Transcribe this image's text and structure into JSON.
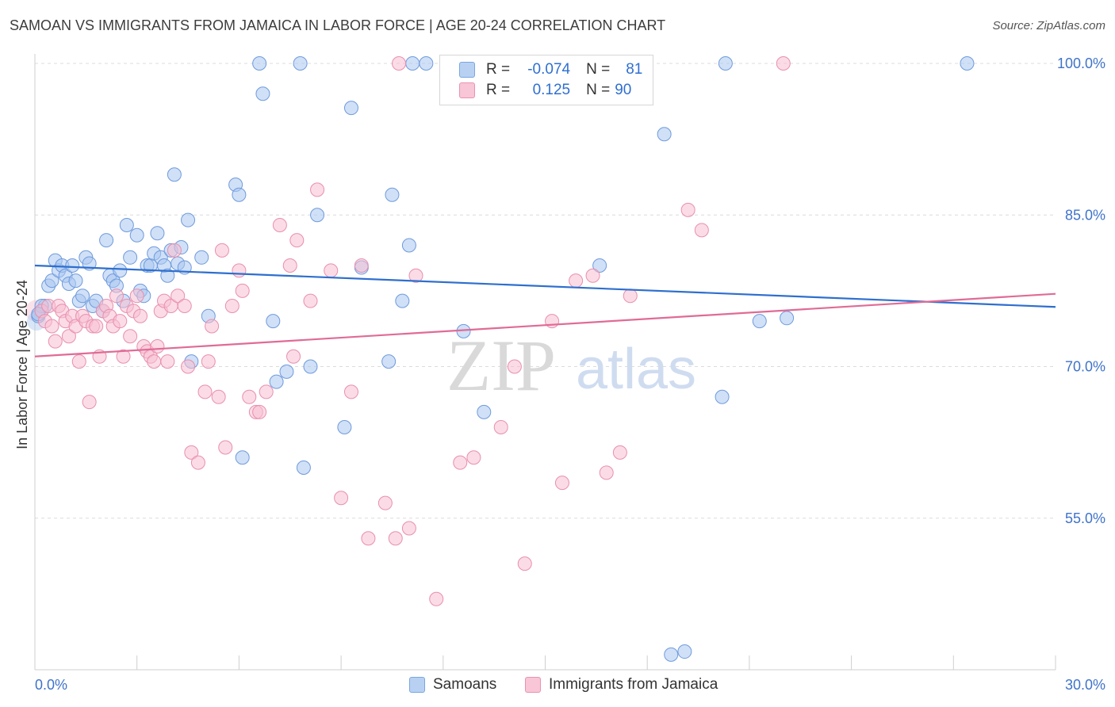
{
  "title": "SAMOAN VS IMMIGRANTS FROM JAMAICA IN LABOR FORCE | AGE 20-24 CORRELATION CHART",
  "source": "Source: ZipAtlas.com",
  "watermark": {
    "zip": "ZIP",
    "atlas": "atlas"
  },
  "legend": {
    "r_label": "R =",
    "n_label": "N =",
    "rows": [
      {
        "r": "-0.074",
        "n": "81",
        "fill": "#b8d1f3",
        "stroke": "#7aa6e0"
      },
      {
        "r": "0.125",
        "n": "90",
        "fill": "#f8c6d6",
        "stroke": "#ea92b0"
      }
    ]
  },
  "bottom_legend": [
    "Samoans",
    "Immigrants from Jamaica"
  ],
  "colors": {
    "blue_fill": "#aac7f0",
    "blue_stroke": "#6f9bdc",
    "blue_line": "#2e6fce",
    "pink_fill": "#f7bfd1",
    "pink_stroke": "#e98fae",
    "pink_line": "#e06b96",
    "tick_label": "#3f73c9",
    "grid": "#dcdcdc"
  },
  "chart_data": {
    "type": "scatter",
    "title": "SAMOAN VS IMMIGRANTS FROM JAMAICA IN LABOR FORCE | AGE 20-24 CORRELATION CHART",
    "xlabel": "",
    "ylabel": "In Labor Force | Age 20-24",
    "xlim": [
      0,
      30
    ],
    "ylim": [
      40,
      100
    ],
    "x_tick_labels": [
      "0.0%",
      "30.0%"
    ],
    "y_ticks": [
      55,
      70,
      85,
      100
    ],
    "y_tick_labels": [
      "55.0%",
      "70.0%",
      "85.0%",
      "100.0%"
    ],
    "grid": true,
    "legend_position": "top-center",
    "series": [
      {
        "name": "Samoans",
        "points": [
          [
            0.1,
            75.0
          ],
          [
            0.2,
            75.5
          ],
          [
            0.3,
            76.0
          ],
          [
            0.4,
            78.0
          ],
          [
            0.5,
            78.5
          ],
          [
            0.6,
            80.5
          ],
          [
            0.7,
            79.5
          ],
          [
            0.8,
            80.0
          ],
          [
            0.9,
            79.0
          ],
          [
            1.0,
            78.2
          ],
          [
            1.1,
            80.0
          ],
          [
            1.2,
            78.5
          ],
          [
            1.3,
            76.5
          ],
          [
            1.4,
            77.0
          ],
          [
            1.5,
            80.8
          ],
          [
            1.6,
            80.2
          ],
          [
            1.7,
            76.0
          ],
          [
            1.8,
            76.5
          ],
          [
            2.0,
            75.5
          ],
          [
            2.1,
            82.5
          ],
          [
            2.2,
            79.0
          ],
          [
            2.3,
            78.5
          ],
          [
            2.4,
            78.0
          ],
          [
            2.5,
            79.5
          ],
          [
            2.6,
            76.5
          ],
          [
            2.7,
            84.0
          ],
          [
            2.8,
            80.8
          ],
          [
            3.0,
            83.0
          ],
          [
            3.1,
            77.5
          ],
          [
            3.2,
            77.0
          ],
          [
            3.3,
            80.0
          ],
          [
            3.4,
            80.0
          ],
          [
            3.5,
            81.2
          ],
          [
            3.6,
            83.2
          ],
          [
            3.7,
            80.8
          ],
          [
            3.8,
            80.0
          ],
          [
            3.9,
            79.0
          ],
          [
            4.0,
            81.5
          ],
          [
            4.1,
            89.0
          ],
          [
            4.2,
            80.2
          ],
          [
            4.3,
            81.8
          ],
          [
            4.4,
            79.8
          ],
          [
            4.5,
            84.5
          ],
          [
            4.6,
            70.5
          ],
          [
            4.9,
            80.8
          ],
          [
            5.1,
            75.0
          ],
          [
            5.9,
            88.0
          ],
          [
            6.0,
            87.0
          ],
          [
            6.1,
            61.0
          ],
          [
            6.6,
            100.0
          ],
          [
            6.7,
            97.0
          ],
          [
            7.0,
            74.5
          ],
          [
            7.1,
            68.5
          ],
          [
            7.4,
            69.5
          ],
          [
            7.8,
            100.0
          ],
          [
            7.9,
            60.0
          ],
          [
            8.1,
            70.0
          ],
          [
            8.3,
            85.0
          ],
          [
            9.1,
            64.0
          ],
          [
            9.3,
            95.6
          ],
          [
            9.6,
            79.8
          ],
          [
            10.4,
            70.5
          ],
          [
            10.5,
            87.0
          ],
          [
            10.8,
            76.5
          ],
          [
            11.0,
            82.0
          ],
          [
            11.1,
            100.0
          ],
          [
            11.5,
            100.0
          ],
          [
            12.6,
            73.5
          ],
          [
            13.2,
            65.5
          ],
          [
            14.7,
            100.0
          ],
          [
            16.6,
            80.0
          ],
          [
            18.5,
            93.0
          ],
          [
            18.7,
            41.5
          ],
          [
            19.1,
            41.8
          ],
          [
            20.2,
            67.0
          ],
          [
            20.3,
            100.0
          ],
          [
            21.3,
            74.5
          ],
          [
            22.1,
            74.8
          ],
          [
            27.4,
            100.0
          ],
          [
            0.2,
            76.0
          ],
          [
            0.1,
            75.2
          ]
        ]
      },
      {
        "name": "Immigrants from Jamaica",
        "points": [
          [
            0.2,
            75.5
          ],
          [
            0.3,
            74.5
          ],
          [
            0.4,
            76.0
          ],
          [
            0.5,
            74.0
          ],
          [
            0.6,
            72.5
          ],
          [
            0.7,
            76.0
          ],
          [
            0.8,
            75.5
          ],
          [
            0.9,
            74.5
          ],
          [
            1.0,
            73.0
          ],
          [
            1.1,
            75.0
          ],
          [
            1.2,
            74.0
          ],
          [
            1.3,
            70.5
          ],
          [
            1.4,
            75.0
          ],
          [
            1.5,
            74.5
          ],
          [
            1.6,
            66.5
          ],
          [
            1.7,
            74.0
          ],
          [
            1.8,
            74.0
          ],
          [
            1.9,
            71.0
          ],
          [
            2.0,
            75.5
          ],
          [
            2.1,
            76.0
          ],
          [
            2.2,
            75.0
          ],
          [
            2.3,
            74.0
          ],
          [
            2.4,
            77.0
          ],
          [
            2.5,
            74.5
          ],
          [
            2.6,
            71.0
          ],
          [
            2.7,
            76.0
          ],
          [
            2.8,
            73.0
          ],
          [
            2.9,
            75.5
          ],
          [
            3.0,
            77.0
          ],
          [
            3.1,
            75.0
          ],
          [
            3.2,
            72.0
          ],
          [
            3.3,
            71.5
          ],
          [
            3.4,
            71.0
          ],
          [
            3.5,
            70.5
          ],
          [
            3.6,
            72.0
          ],
          [
            3.7,
            75.5
          ],
          [
            3.8,
            76.5
          ],
          [
            3.9,
            70.5
          ],
          [
            4.0,
            76.0
          ],
          [
            4.1,
            81.5
          ],
          [
            4.2,
            77.0
          ],
          [
            4.4,
            76.0
          ],
          [
            4.5,
            70.0
          ],
          [
            4.6,
            61.5
          ],
          [
            4.8,
            60.5
          ],
          [
            5.0,
            67.5
          ],
          [
            5.1,
            70.5
          ],
          [
            5.2,
            74.0
          ],
          [
            5.4,
            67.0
          ],
          [
            5.5,
            81.5
          ],
          [
            5.6,
            62.0
          ],
          [
            5.8,
            76.0
          ],
          [
            6.0,
            79.5
          ],
          [
            6.1,
            77.5
          ],
          [
            6.3,
            67.0
          ],
          [
            6.5,
            65.5
          ],
          [
            6.6,
            65.5
          ],
          [
            6.8,
            67.5
          ],
          [
            7.2,
            84.0
          ],
          [
            7.5,
            80.0
          ],
          [
            7.6,
            71.0
          ],
          [
            7.7,
            82.5
          ],
          [
            8.1,
            76.5
          ],
          [
            8.3,
            87.5
          ],
          [
            8.7,
            79.5
          ],
          [
            9.0,
            57.0
          ],
          [
            9.3,
            67.5
          ],
          [
            9.6,
            80.0
          ],
          [
            9.8,
            53.0
          ],
          [
            10.3,
            56.5
          ],
          [
            10.6,
            53.0
          ],
          [
            10.7,
            100.0
          ],
          [
            11.0,
            54.0
          ],
          [
            11.2,
            79.0
          ],
          [
            11.8,
            47.0
          ],
          [
            12.5,
            60.5
          ],
          [
            12.9,
            61.0
          ],
          [
            13.7,
            64.0
          ],
          [
            14.1,
            70.0
          ],
          [
            14.4,
            50.5
          ],
          [
            15.2,
            74.5
          ],
          [
            15.5,
            58.5
          ],
          [
            15.9,
            78.5
          ],
          [
            16.4,
            79.0
          ],
          [
            16.8,
            59.5
          ],
          [
            17.2,
            61.5
          ],
          [
            17.5,
            77.0
          ],
          [
            19.2,
            85.5
          ],
          [
            19.6,
            83.5
          ],
          [
            22.0,
            100.0
          ]
        ]
      }
    ],
    "trendlines": [
      {
        "name": "Samoans",
        "from": [
          0,
          80.0
        ],
        "to": [
          30,
          75.9
        ]
      },
      {
        "name": "Immigrants from Jamaica",
        "from": [
          0,
          71.0
        ],
        "to": [
          30,
          77.2
        ]
      }
    ]
  }
}
